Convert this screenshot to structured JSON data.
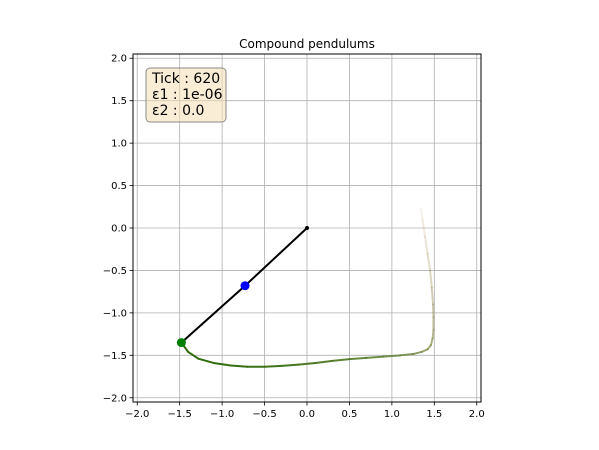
{
  "chart_data": {
    "type": "line",
    "title": "Compound pendulums",
    "xlabel": "",
    "ylabel": "",
    "xlim": [
      -2.05,
      2.05
    ],
    "ylim": [
      -2.05,
      2.05
    ],
    "xticks": [
      -2.0,
      -1.5,
      -1.0,
      -0.5,
      0.0,
      0.5,
      1.0,
      1.5,
      2.0
    ],
    "yticks": [
      -2.0,
      -1.5,
      -1.0,
      -0.5,
      0.0,
      0.5,
      1.0,
      1.5,
      2.0
    ],
    "xtick_labels": [
      "−2.0",
      "−1.5",
      "−1.0",
      "−0.5",
      "0.0",
      "0.5",
      "1.0",
      "1.5",
      "2.0"
    ],
    "ytick_labels": [
      "−2.0",
      "−1.5",
      "−1.0",
      "−0.5",
      "0.0",
      "0.5",
      "1.0",
      "1.5",
      "2.0"
    ],
    "grid": true,
    "info_box": {
      "tick_label": "Tick : 620",
      "eps1_label": "ε1 : 1e-06",
      "eps2_label": "ε2 : 0.0"
    },
    "pendulum": {
      "pivot": [
        0.0,
        0.0
      ],
      "bob1": [
        -0.73,
        -0.68
      ],
      "bob2": [
        -1.48,
        -1.35
      ]
    },
    "trail": {
      "points": [
        [
          -1.48,
          -1.35
        ],
        [
          -1.4,
          -1.46
        ],
        [
          -1.28,
          -1.54
        ],
        [
          -1.1,
          -1.59
        ],
        [
          -0.9,
          -1.62
        ],
        [
          -0.7,
          -1.635
        ],
        [
          -0.5,
          -1.635
        ],
        [
          -0.3,
          -1.625
        ],
        [
          -0.1,
          -1.61
        ],
        [
          0.1,
          -1.59
        ],
        [
          0.3,
          -1.565
        ],
        [
          0.5,
          -1.545
        ],
        [
          0.7,
          -1.53
        ],
        [
          0.9,
          -1.515
        ],
        [
          1.1,
          -1.5
        ],
        [
          1.25,
          -1.485
        ],
        [
          1.35,
          -1.46
        ],
        [
          1.42,
          -1.43
        ],
        [
          1.46,
          -1.38
        ],
        [
          1.48,
          -1.3
        ],
        [
          1.49,
          -1.2
        ],
        [
          1.49,
          -1.05
        ],
        [
          1.485,
          -0.9
        ],
        [
          1.47,
          -0.7
        ],
        [
          1.45,
          -0.5
        ],
        [
          1.42,
          -0.3
        ],
        [
          1.39,
          -0.1
        ],
        [
          1.36,
          0.1
        ],
        [
          1.34,
          0.23
        ]
      ]
    },
    "colors": {
      "rod": "#000000",
      "bob1": "#0000ff",
      "bob2": "#008000",
      "trail_recent": "#2e6b0a",
      "trail_old": "#c9a27a",
      "grid": "#b0b0b0",
      "info_box_fill": "#f5deb3",
      "info_box_edge": "#8a8a8a"
    }
  }
}
